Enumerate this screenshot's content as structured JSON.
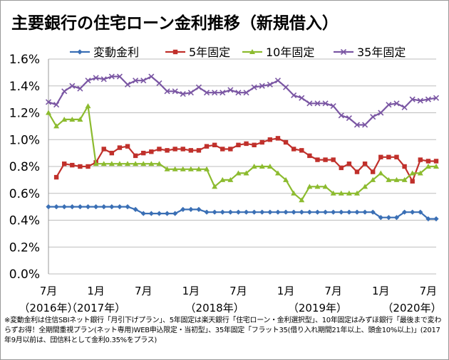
{
  "chart_data": {
    "type": "line",
    "title": "主要銀行の住宅ローン金利推移（新規借入）",
    "ylim": [
      0.0,
      1.6
    ],
    "yticks": [
      "0.0%",
      "0.2%",
      "0.4%",
      "0.6%",
      "0.8%",
      "1.0%",
      "1.2%",
      "1.4%",
      "1.6%"
    ],
    "xticks": [
      {
        "index": 0,
        "label": "7月"
      },
      {
        "index": 6,
        "label": "1月"
      },
      {
        "index": 12,
        "label": "7月"
      },
      {
        "index": 18,
        "label": "1月"
      },
      {
        "index": 24,
        "label": "7月"
      },
      {
        "index": 30,
        "label": "1月"
      },
      {
        "index": 36,
        "label": "7月"
      },
      {
        "index": 42,
        "label": "1月"
      },
      {
        "index": 48,
        "label": "7月"
      }
    ],
    "year_labels": [
      {
        "index": 0,
        "label": "（2016年）"
      },
      {
        "index": 6,
        "label": "（2017年）"
      },
      {
        "index": 21,
        "label": "（2018年）"
      },
      {
        "index": 34,
        "label": "（2019年）"
      },
      {
        "index": 47,
        "label": "（2020年）"
      }
    ],
    "x_count": 50,
    "series": [
      {
        "name": "変動金利",
        "color": "#3a6fb5",
        "marker": "diamond",
        "values": [
          0.5,
          0.5,
          0.5,
          0.5,
          0.5,
          0.5,
          0.5,
          0.5,
          0.5,
          0.5,
          0.5,
          0.48,
          0.45,
          0.45,
          0.45,
          0.45,
          0.45,
          0.48,
          0.48,
          0.48,
          0.46,
          0.46,
          0.46,
          0.46,
          0.46,
          0.46,
          0.46,
          0.46,
          0.46,
          0.46,
          0.46,
          0.46,
          0.46,
          0.46,
          0.46,
          0.46,
          0.46,
          0.46,
          0.46,
          0.46,
          0.46,
          0.46,
          0.42,
          0.42,
          0.42,
          0.46,
          0.46,
          0.46,
          0.41,
          0.41
        ]
      },
      {
        "name": "5年固定",
        "color": "#c0302b",
        "marker": "square",
        "values": [
          null,
          0.72,
          0.82,
          0.81,
          0.8,
          0.8,
          0.83,
          0.93,
          0.9,
          0.94,
          0.95,
          0.88,
          0.9,
          0.91,
          0.93,
          0.92,
          0.93,
          0.93,
          0.92,
          0.92,
          0.95,
          0.96,
          0.93,
          0.93,
          0.96,
          0.97,
          0.96,
          0.98,
          1.0,
          1.01,
          0.98,
          0.93,
          0.92,
          0.88,
          0.85,
          0.85,
          0.85,
          0.79,
          0.82,
          0.76,
          0.82,
          0.76,
          0.87,
          0.87,
          0.87,
          0.8,
          0.69,
          0.85,
          0.84,
          0.84
        ]
      },
      {
        "name": "10年固定",
        "color": "#8cbb2f",
        "marker": "triangle",
        "values": [
          1.2,
          1.1,
          1.15,
          1.15,
          1.15,
          1.25,
          0.82,
          0.82,
          0.82,
          0.82,
          0.82,
          0.82,
          0.82,
          0.82,
          0.82,
          0.78,
          0.78,
          0.78,
          0.78,
          0.78,
          0.78,
          0.65,
          0.7,
          0.7,
          0.75,
          0.75,
          0.8,
          0.8,
          0.8,
          0.75,
          0.7,
          0.6,
          0.55,
          0.65,
          0.65,
          0.65,
          0.6,
          0.6,
          0.6,
          0.6,
          0.65,
          0.7,
          0.75,
          0.7,
          0.7,
          0.7,
          0.75,
          0.75,
          0.8,
          0.8
        ]
      },
      {
        "name": "35年固定",
        "color": "#7a56a3",
        "marker": "x",
        "values": [
          1.28,
          1.26,
          1.36,
          1.4,
          1.38,
          1.44,
          1.46,
          1.45,
          1.47,
          1.47,
          1.41,
          1.44,
          1.44,
          1.47,
          1.42,
          1.36,
          1.36,
          1.34,
          1.35,
          1.39,
          1.35,
          1.35,
          1.35,
          1.37,
          1.35,
          1.35,
          1.39,
          1.4,
          1.41,
          1.44,
          1.39,
          1.33,
          1.31,
          1.27,
          1.27,
          1.27,
          1.25,
          1.18,
          1.16,
          1.11,
          1.11,
          1.17,
          1.2,
          1.26,
          1.27,
          1.24,
          1.3,
          1.29,
          1.3,
          1.31
        ]
      }
    ]
  },
  "note": "※変動金利は住信SBIネット銀行「月引下げプラン」、5年固定は楽天銀行「住宅ローン・金利選択型」、10年固定はみずほ銀行「最後まで変わらずお得！全期間重視プラン(ネット専用)WEB申込限定・当初型」、35年固定「フラット35(借り入れ期間21年以上、頭金10%以上)」(2017年9月以前は、団信料として金利0.35%をプラス)"
}
